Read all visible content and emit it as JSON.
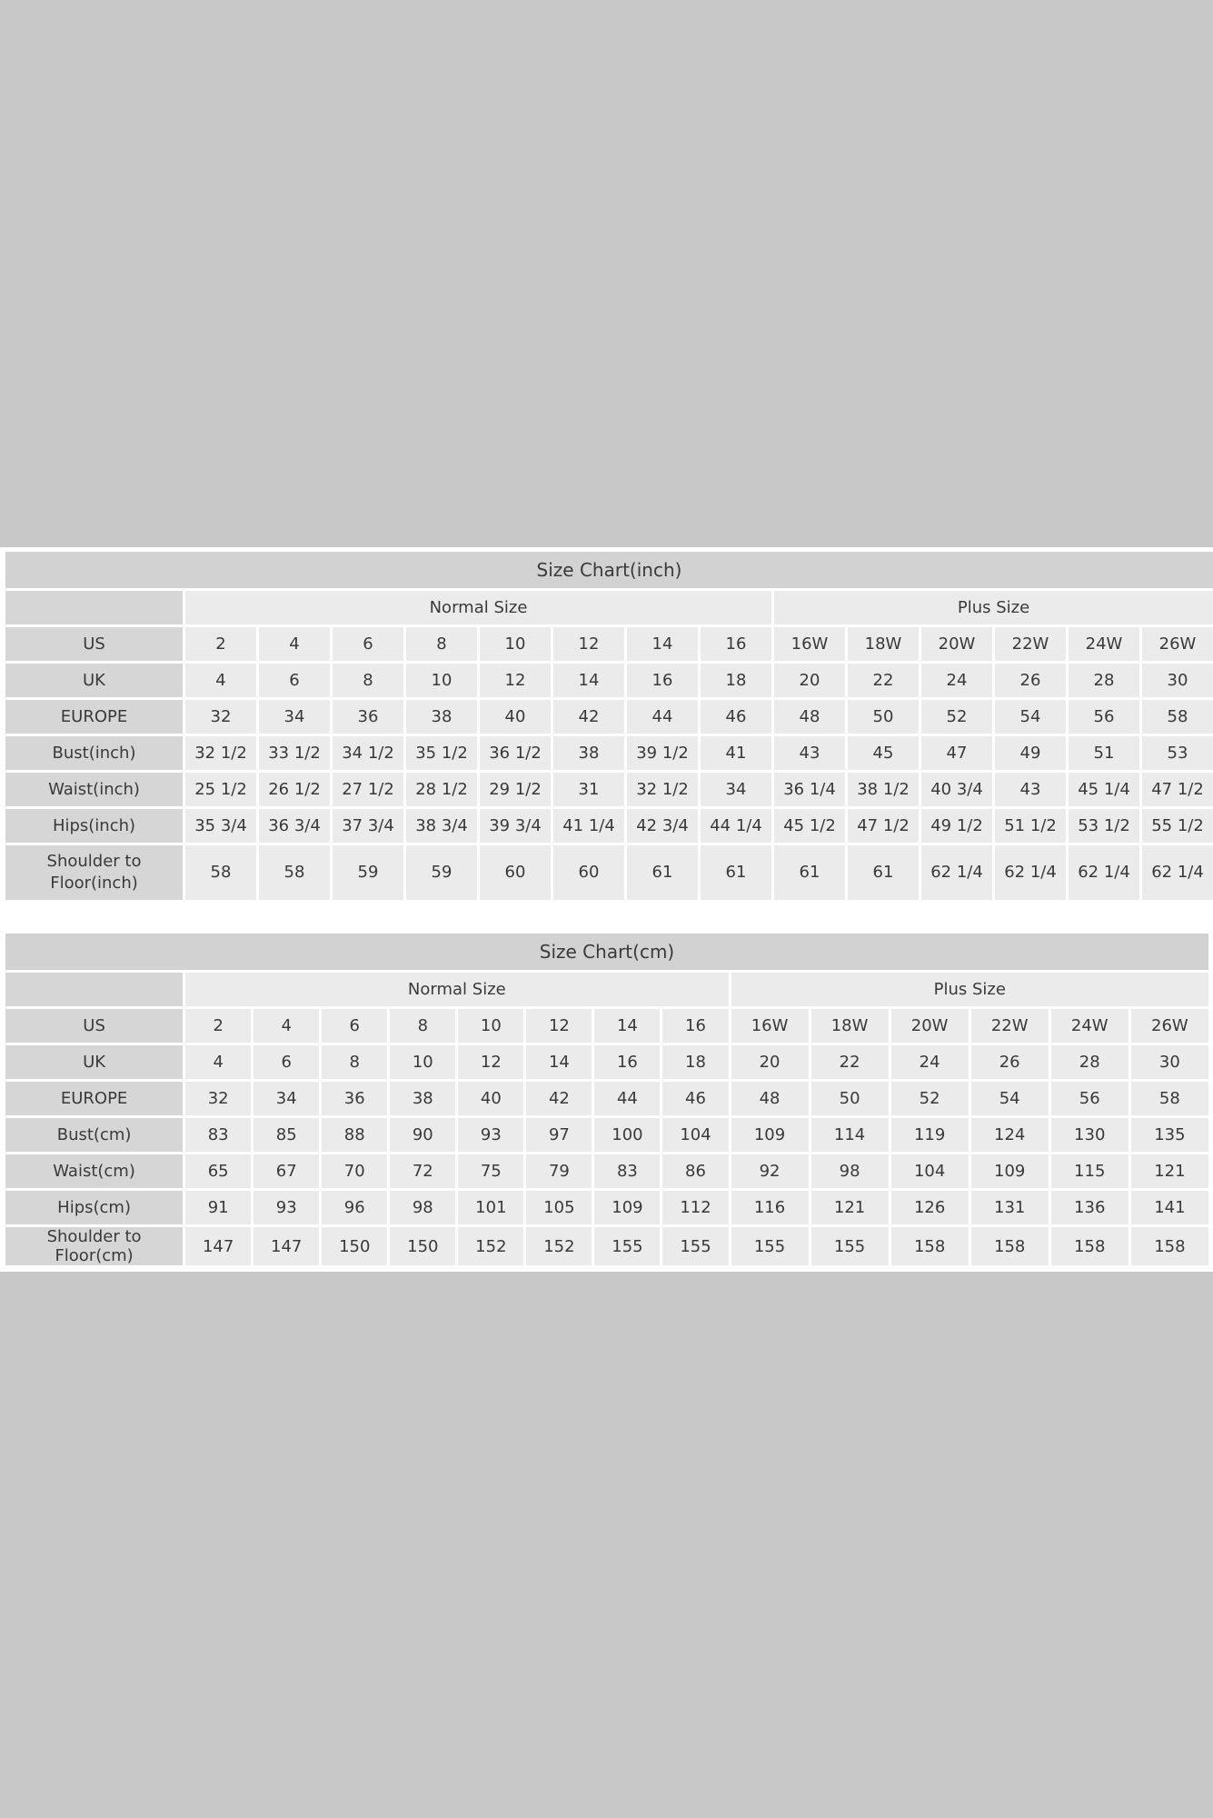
{
  "background_color": "#c8c8c8",
  "inch_chart": {
    "title": "Size Chart(inch)",
    "groups": [
      {
        "label": "Normal Size",
        "span": 8
      },
      {
        "label": "Plus Size",
        "span": 6
      }
    ],
    "rows": [
      {
        "label": "US",
        "values": [
          "2",
          "4",
          "6",
          "8",
          "10",
          "12",
          "14",
          "16",
          "16W",
          "18W",
          "20W",
          "22W",
          "24W",
          "26W"
        ]
      },
      {
        "label": "UK",
        "values": [
          "4",
          "6",
          "8",
          "10",
          "12",
          "14",
          "16",
          "18",
          "20",
          "22",
          "24",
          "26",
          "28",
          "30"
        ]
      },
      {
        "label": "EUROPE",
        "values": [
          "32",
          "34",
          "36",
          "38",
          "40",
          "42",
          "44",
          "46",
          "48",
          "50",
          "52",
          "54",
          "56",
          "58"
        ]
      },
      {
        "label": "Bust(inch)",
        "values": [
          "32 1/2",
          "33 1/2",
          "34 1/2",
          "35 1/2",
          "36 1/2",
          "38",
          "39 1/2",
          "41",
          "43",
          "45",
          "47",
          "49",
          "51",
          "53"
        ]
      },
      {
        "label": "Waist(inch)",
        "values": [
          "25 1/2",
          "26 1/2",
          "27 1/2",
          "28 1/2",
          "29 1/2",
          "31",
          "32 1/2",
          "34",
          "36 1/4",
          "38 1/2",
          "40 3/4",
          "43",
          "45 1/4",
          "47 1/2"
        ]
      },
      {
        "label": "Hips(inch)",
        "values": [
          "35 3/4",
          "36 3/4",
          "37 3/4",
          "38 3/4",
          "39 3/4",
          "41 1/4",
          "42 3/4",
          "44 1/4",
          "45 1/2",
          "47 1/2",
          "49 1/2",
          "51 1/2",
          "53 1/2",
          "55 1/2"
        ]
      },
      {
        "label": "Shoulder to Floor(inch)",
        "values": [
          "58",
          "58",
          "59",
          "59",
          "60",
          "60",
          "61",
          "61",
          "61",
          "61",
          "62 1/4",
          "62 1/4",
          "62 1/4",
          "62 1/4"
        ]
      }
    ]
  },
  "cm_chart": {
    "title": "Size Chart(cm)",
    "groups": [
      {
        "label": "Normal Size",
        "span": 8
      },
      {
        "label": "Plus Size",
        "span": 6
      }
    ],
    "rows": [
      {
        "label": "US",
        "values": [
          "2",
          "4",
          "6",
          "8",
          "10",
          "12",
          "14",
          "16",
          "16W",
          "18W",
          "20W",
          "22W",
          "24W",
          "26W"
        ]
      },
      {
        "label": "UK",
        "values": [
          "4",
          "6",
          "8",
          "10",
          "12",
          "14",
          "16",
          "18",
          "20",
          "22",
          "24",
          "26",
          "28",
          "30"
        ]
      },
      {
        "label": "EUROPE",
        "values": [
          "32",
          "34",
          "36",
          "38",
          "40",
          "42",
          "44",
          "46",
          "48",
          "50",
          "52",
          "54",
          "56",
          "58"
        ]
      },
      {
        "label": "Bust(cm)",
        "values": [
          "83",
          "85",
          "88",
          "90",
          "93",
          "97",
          "100",
          "104",
          "109",
          "114",
          "119",
          "124",
          "130",
          "135"
        ]
      },
      {
        "label": "Waist(cm)",
        "values": [
          "65",
          "67",
          "70",
          "72",
          "75",
          "79",
          "83",
          "86",
          "92",
          "98",
          "104",
          "109",
          "115",
          "121"
        ]
      },
      {
        "label": "Hips(cm)",
        "values": [
          "91",
          "93",
          "96",
          "98",
          "101",
          "105",
          "109",
          "112",
          "116",
          "121",
          "126",
          "131",
          "136",
          "141"
        ]
      },
      {
        "label": "Shoulder to Floor(cm)",
        "values": [
          "147",
          "147",
          "150",
          "150",
          "152",
          "152",
          "155",
          "155",
          "155",
          "155",
          "158",
          "158",
          "158",
          "158"
        ]
      }
    ]
  }
}
